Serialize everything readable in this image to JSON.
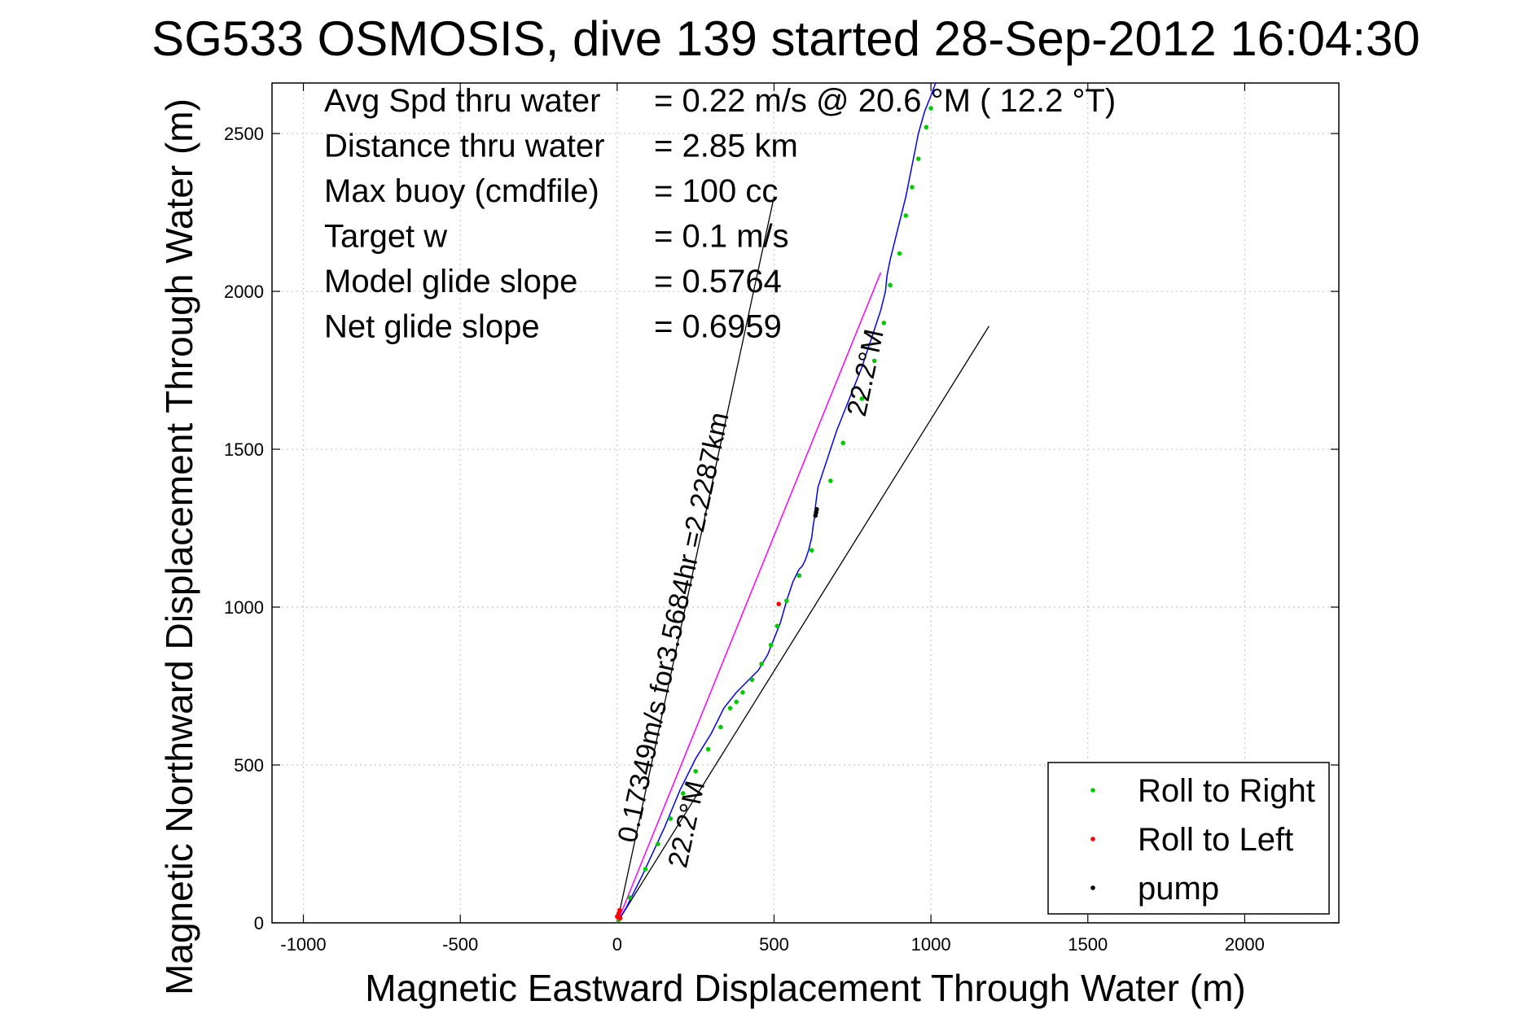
{
  "chart_data": {
    "type": "line",
    "title": "SG533 OSMOSIS, dive 139 started 28-Sep-2012 16:04:30",
    "xlabel": "Magnetic Eastward Displacement Through Water (m)",
    "ylabel": "Magnetic Northward Displacement Through Water (m)",
    "xlim": [
      -1100,
      2300
    ],
    "ylim": [
      0,
      2660
    ],
    "xticks": [
      -1000,
      -500,
      0,
      500,
      1000,
      1500,
      2000
    ],
    "xtick_labels": [
      "-1000",
      "-500",
      "0",
      "500",
      "1000",
      "1500",
      "2000"
    ],
    "yticks": [
      0,
      500,
      1000,
      1500,
      2000,
      2500
    ],
    "ytick_labels": [
      "0",
      "500",
      "1000",
      "1500",
      "2000",
      "2500"
    ],
    "grid": true,
    "legend_position": "bottom-right",
    "stats": [
      {
        "label": "Avg Spd thru water",
        "value": "=  0.22 m/s @  20.6 °M ( 12.2 °T)"
      },
      {
        "label": "Distance thru water",
        "value": "=  2.85 km"
      },
      {
        "label": "Max buoy (cmdfile)",
        "value": "= 100 cc"
      },
      {
        "label": "Target w",
        "value": "= 0.1 m/s"
      },
      {
        "label": "Model glide slope",
        "value": "= 0.5764"
      },
      {
        "label": "Net glide slope",
        "value": "= 0.6959"
      }
    ],
    "annotations": [
      {
        "text": "0.17349m/s for3.5684hr =2.2287km",
        "x": 60,
        "y": 250
      },
      {
        "text": "22.2°M",
        "x": 790,
        "y": 1600
      },
      {
        "text": "22.2°M",
        "x": 220,
        "y": 170
      }
    ],
    "series": [
      {
        "name": "track",
        "color": "#0000ff",
        "style": "line",
        "x": [
          0,
          30,
          80,
          150,
          200,
          250,
          300,
          340,
          380,
          410,
          450,
          480,
          500,
          520,
          540,
          560,
          580,
          590,
          600,
          610,
          620,
          625,
          630,
          632,
          640,
          660,
          680,
          700,
          720,
          740,
          760,
          780,
          800,
          820,
          840,
          855,
          860,
          870,
          880,
          890,
          900,
          910,
          920,
          930,
          940,
          950,
          960,
          980,
          1000,
          1015
        ],
        "y": [
          0,
          50,
          150,
          300,
          420,
          520,
          600,
          680,
          730,
          760,
          800,
          850,
          900,
          950,
          1020,
          1080,
          1120,
          1130,
          1150,
          1180,
          1220,
          1260,
          1290,
          1320,
          1380,
          1440,
          1500,
          1560,
          1610,
          1660,
          1710,
          1760,
          1820,
          1880,
          1940,
          2000,
          2050,
          2100,
          2140,
          2180,
          2220,
          2260,
          2300,
          2350,
          2400,
          2450,
          2500,
          2570,
          2620,
          2660
        ]
      },
      {
        "name": "commanded",
        "color": "#ff00ff",
        "style": "line",
        "x": [
          0,
          840
        ],
        "y": [
          0,
          2060
        ]
      },
      {
        "name": "Roll to Right",
        "color": "#00cc00",
        "style": "markers",
        "x": [
          5,
          40,
          90,
          130,
          170,
          210,
          250,
          290,
          330,
          360,
          380,
          400,
          430,
          460,
          490,
          510,
          540,
          580,
          620,
          680,
          720,
          780,
          820,
          850,
          870,
          900,
          920,
          940,
          960,
          985,
          1000
        ],
        "y": [
          10,
          80,
          170,
          250,
          330,
          410,
          480,
          550,
          620,
          680,
          700,
          730,
          770,
          820,
          880,
          940,
          1020,
          1100,
          1180,
          1400,
          1520,
          1660,
          1780,
          1900,
          2020,
          2120,
          2240,
          2330,
          2420,
          2520,
          2580
        ]
      },
      {
        "name": "Roll to Left",
        "color": "#ff0000",
        "style": "markers",
        "x": [
          0,
          5,
          10,
          8,
          515
        ],
        "y": [
          20,
          30,
          15,
          40,
          1010
        ]
      },
      {
        "name": "pump",
        "color": "#000000",
        "style": "markers",
        "x": [
          632,
          634,
          636
        ],
        "y": [
          1290,
          1300,
          1310
        ]
      }
    ],
    "reference_lines": [
      {
        "color": "#000000",
        "x": [
          0,
          500
        ],
        "y": [
          0,
          2300
        ]
      },
      {
        "color": "#000000",
        "x": [
          0,
          1185
        ],
        "y": [
          0,
          1890
        ]
      }
    ],
    "legend": [
      {
        "label": "Roll to Right",
        "color": "#00cc00"
      },
      {
        "label": "Roll to Left",
        "color": "#ff0000"
      },
      {
        "label": "pump",
        "color": "#000000"
      }
    ]
  }
}
